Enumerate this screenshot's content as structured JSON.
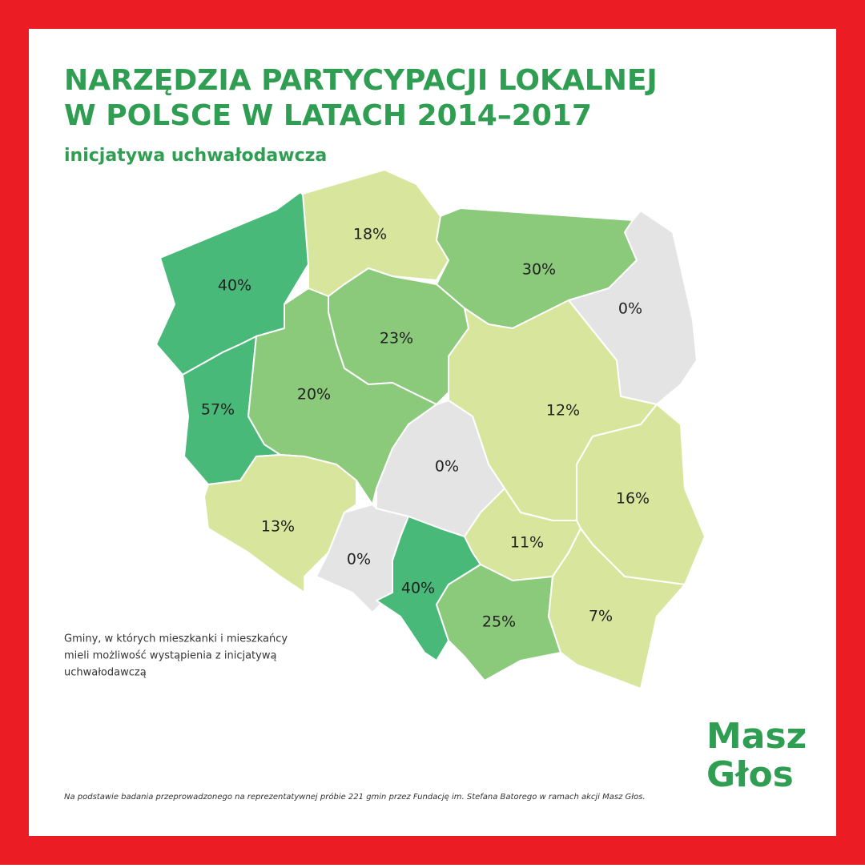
{
  "header": {
    "title_lines": [
      "NARZĘDZIA PARTYCYPACJI LOKALNEJ",
      "W POLSCE W LATACH 2014–2017"
    ],
    "subtitle": "inicjatywa uchwałodawcza"
  },
  "map": {
    "regions": [
      {
        "label": "40%",
        "color": "#48b978"
      },
      {
        "label": "18%",
        "color": "#d8e69d"
      },
      {
        "label": "30%",
        "color": "#8bc97b"
      },
      {
        "label": "0%",
        "color": "#e4e4e4"
      },
      {
        "label": "23%",
        "color": "#8bc97b"
      },
      {
        "label": "57%",
        "color": "#48b978"
      },
      {
        "label": "20%",
        "color": "#8bc97b"
      },
      {
        "label": "12%",
        "color": "#d8e69d"
      },
      {
        "label": "0%",
        "color": "#e4e4e4"
      },
      {
        "label": "16%",
        "color": "#d8e69d"
      },
      {
        "label": "13%",
        "color": "#d8e69d"
      },
      {
        "label": "0%",
        "color": "#e4e4e4"
      },
      {
        "label": "40%",
        "color": "#48b978"
      },
      {
        "label": "11%",
        "color": "#d8e69d"
      },
      {
        "label": "25%",
        "color": "#8bc97b"
      },
      {
        "label": "7%",
        "color": "#d8e69d"
      }
    ]
  },
  "legend": {
    "lines": [
      "Gminy, w których mieszkanki i mieszkańcy",
      "mieli możliwość wystąpienia z inicjatywą",
      "uchwałodawczą"
    ]
  },
  "logo": {
    "line1": "Masz",
    "line2": "Głos"
  },
  "footnote": "Na podstawie badania przeprowadzonego na reprezentatywnej próbie 221 gmin przez Fundację im. Stefana Batorego w ramach akcji Masz Głos."
}
